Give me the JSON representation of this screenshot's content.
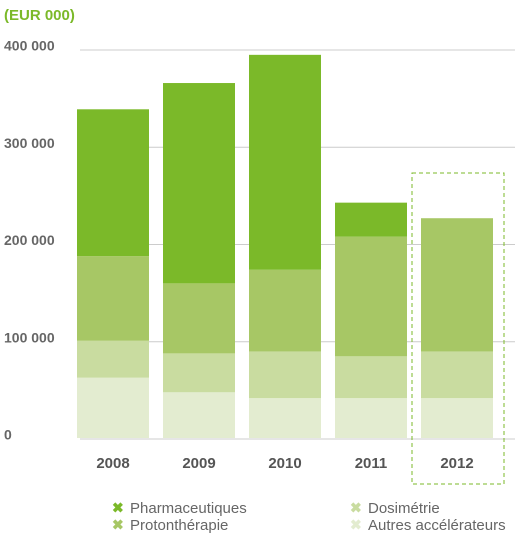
{
  "chart_data": {
    "type": "stacked_bar",
    "title": "(EUR 000)",
    "categories": [
      "2008",
      "2009",
      "2010",
      "2011",
      "2012"
    ],
    "series": [
      {
        "name": "Autres accélérateurs",
        "color": "#e3ecd0",
        "values": [
          62000,
          47000,
          41000,
          41000,
          41000
        ]
      },
      {
        "name": "Dosimétrie",
        "color": "#c9dca0",
        "values": [
          38000,
          40000,
          48000,
          43000,
          48000
        ]
      },
      {
        "name": "Protonthérapie",
        "color": "#a7c765",
        "values": [
          87000,
          72000,
          84000,
          123000,
          137000
        ]
      },
      {
        "name": "Pharmaceutiques",
        "color": "#7bb929",
        "values": [
          151000,
          206000,
          221000,
          35000,
          0
        ]
      }
    ],
    "ylim": [
      0,
      400000
    ],
    "yticks": [
      0,
      {
        "value": 100000,
        "label": "100 000"
      },
      {
        "value": 200000,
        "label": "200 000"
      },
      {
        "value": 300000,
        "label": "300 000"
      },
      {
        "value": 400000,
        "label": "400 000"
      }
    ],
    "grid": true
  }
}
